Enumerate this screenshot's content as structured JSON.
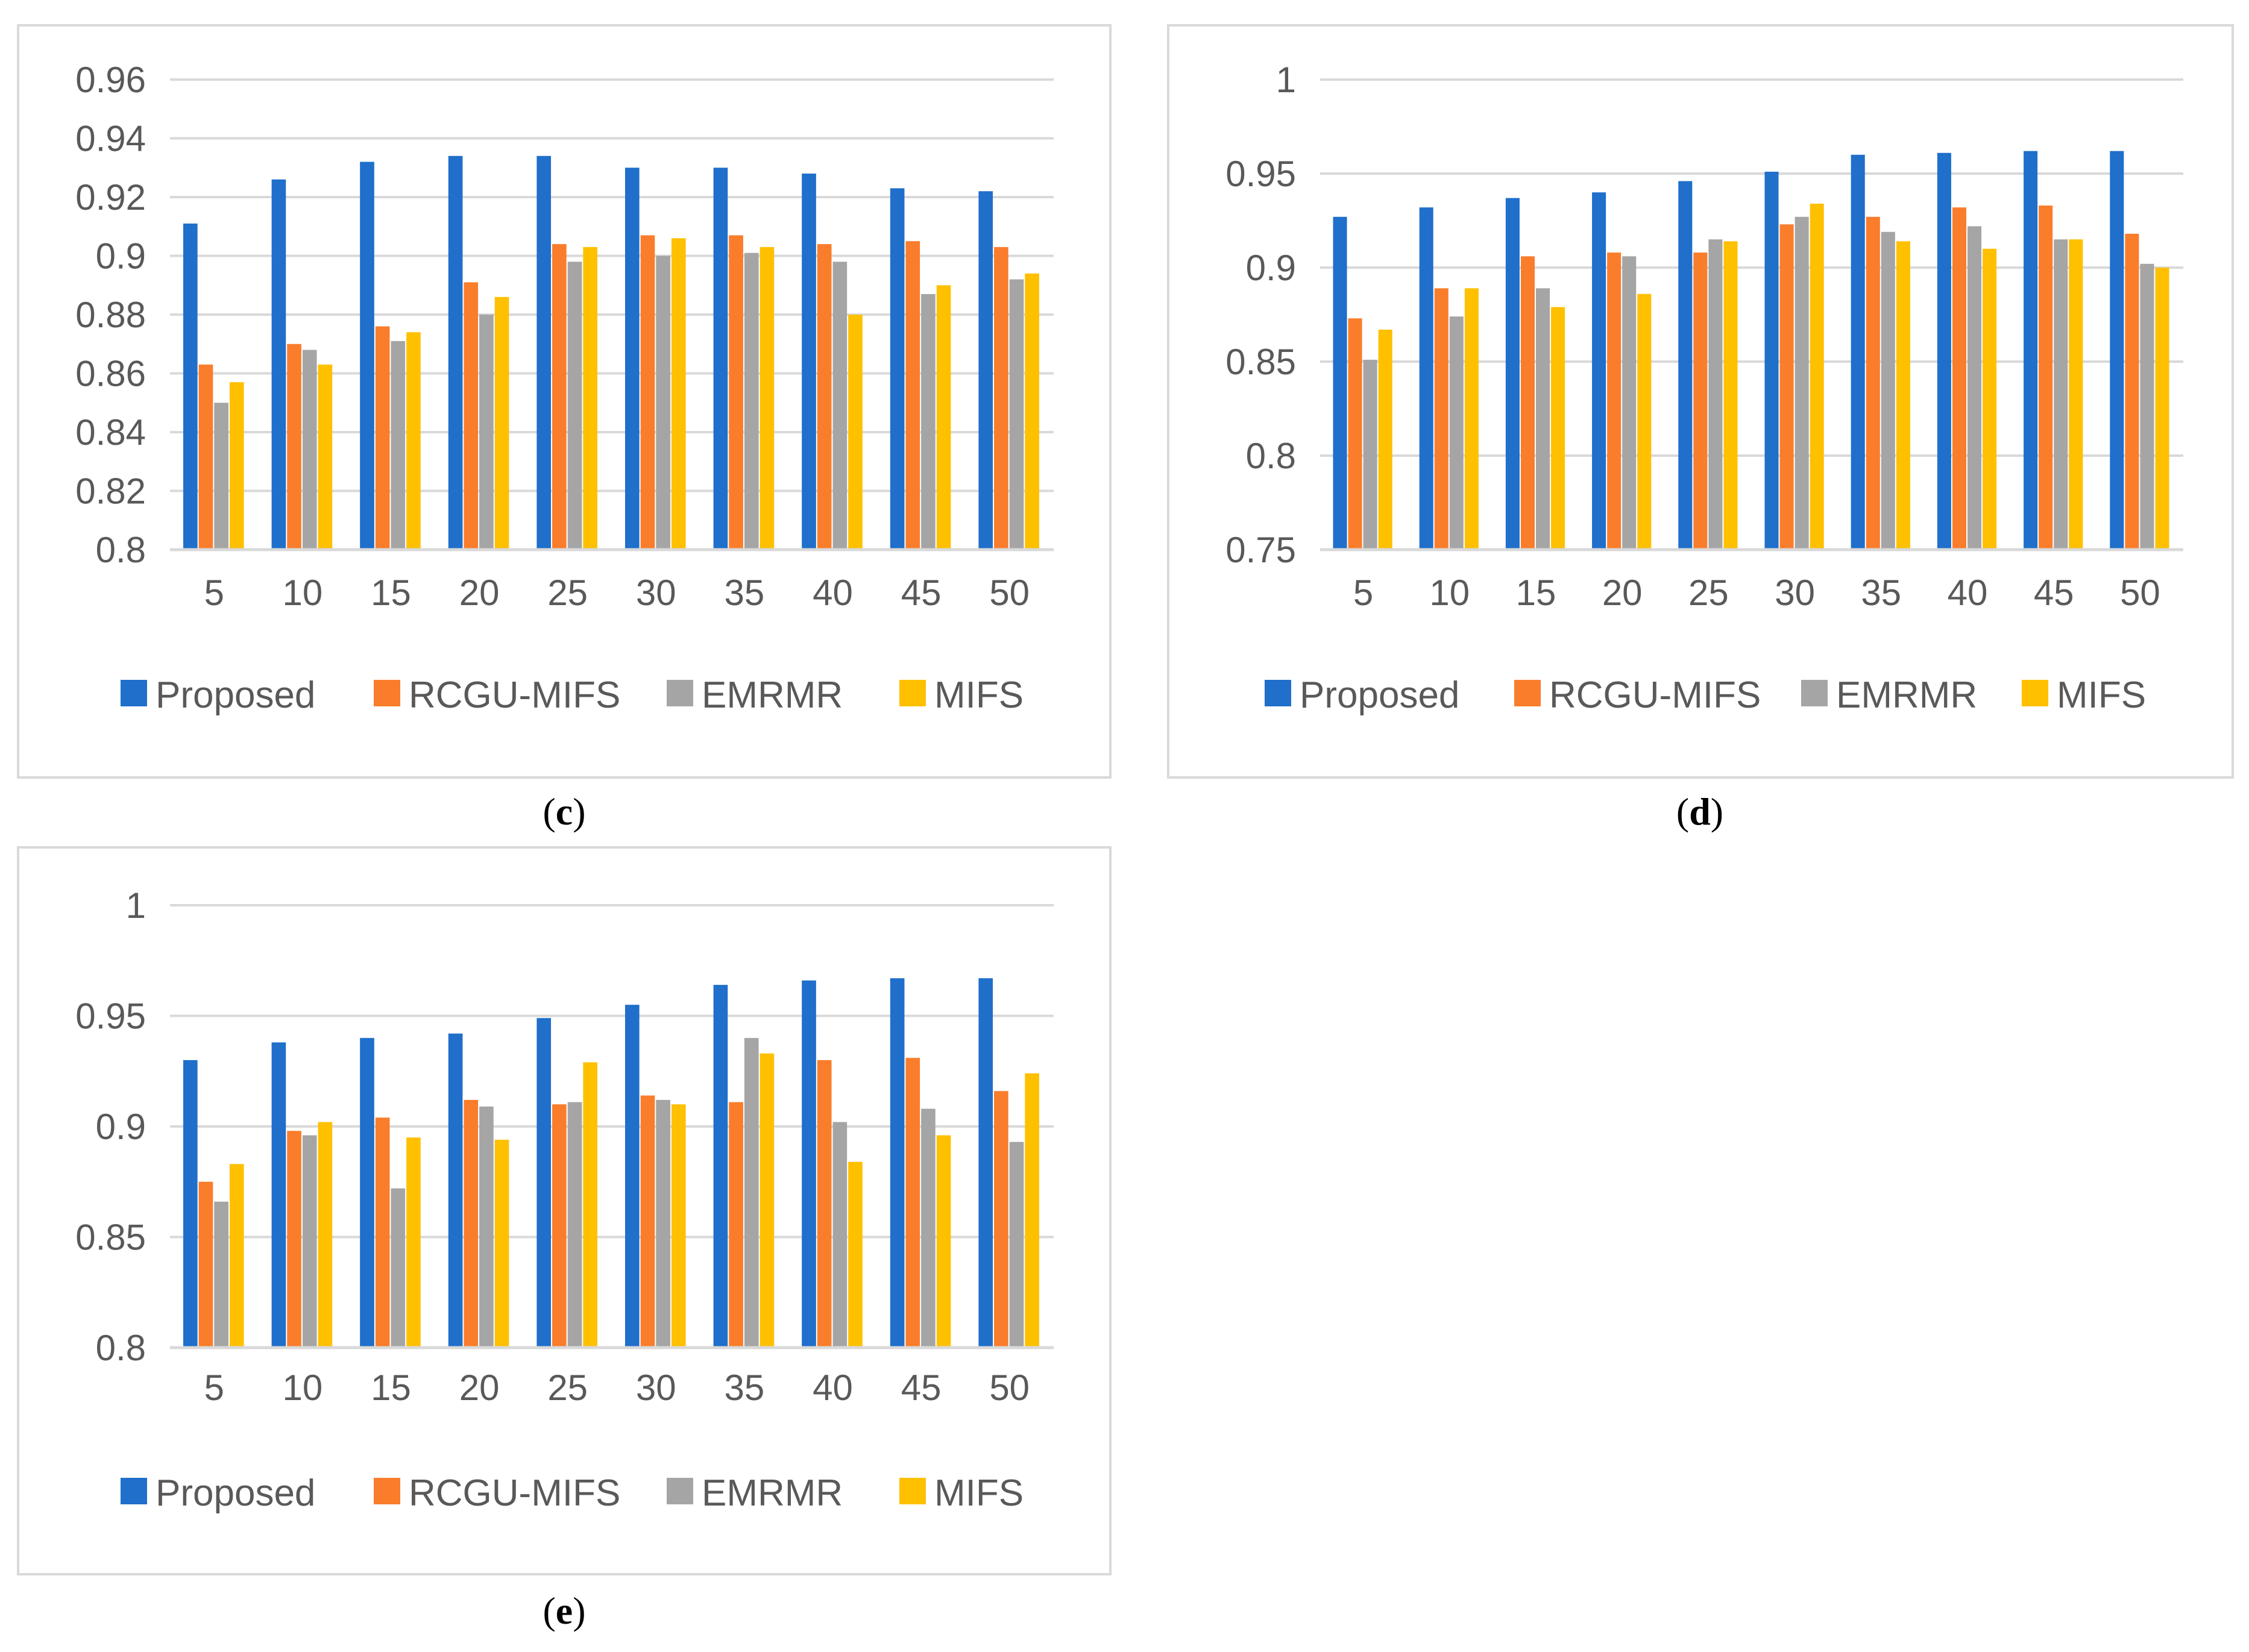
{
  "colors": {
    "Proposed": "#1f6fcb",
    "RCGU-MIFS": "#fa7d2c",
    "EMRMR": "#a5a5a5",
    "MIFS": "#ffc000",
    "grid": "#d9d9d9",
    "text": "#595959"
  },
  "chart_data": [
    {
      "id": "c",
      "caption_open": "(",
      "caption_letter": "c",
      "caption_close": ")",
      "type": "bar",
      "title": "",
      "xlabel": "",
      "ylabel": "",
      "categories": [
        "5",
        "10",
        "15",
        "20",
        "25",
        "30",
        "35",
        "40",
        "45",
        "50"
      ],
      "ylim": [
        0.8,
        0.96
      ],
      "yticks": [
        "0.8",
        "0.82",
        "0.84",
        "0.86",
        "0.88",
        "0.9",
        "0.92",
        "0.94",
        "0.96"
      ],
      "legend_position": "bottom",
      "series": [
        {
          "name": "Proposed",
          "values": [
            0.911,
            0.926,
            0.932,
            0.934,
            0.934,
            0.93,
            0.93,
            0.928,
            0.923,
            0.922
          ]
        },
        {
          "name": "RCGU-MIFS",
          "values": [
            0.863,
            0.87,
            0.876,
            0.891,
            0.904,
            0.907,
            0.907,
            0.904,
            0.905,
            0.903
          ]
        },
        {
          "name": "EMRMR",
          "values": [
            0.85,
            0.868,
            0.871,
            0.88,
            0.898,
            0.9,
            0.901,
            0.898,
            0.887,
            0.892
          ]
        },
        {
          "name": "MIFS",
          "values": [
            0.857,
            0.863,
            0.874,
            0.886,
            0.903,
            0.906,
            0.903,
            0.88,
            0.89,
            0.894
          ]
        }
      ]
    },
    {
      "id": "d",
      "caption_open": "(",
      "caption_letter": "d",
      "caption_close": ")",
      "type": "bar",
      "title": "",
      "xlabel": "",
      "ylabel": "",
      "categories": [
        "5",
        "10",
        "15",
        "20",
        "25",
        "30",
        "35",
        "40",
        "45",
        "50"
      ],
      "ylim": [
        0.75,
        1
      ],
      "yticks": [
        "0.75",
        "0.8",
        "0.85",
        "0.9",
        "0.95",
        "1"
      ],
      "legend_position": "bottom",
      "series": [
        {
          "name": "Proposed",
          "values": [
            0.927,
            0.932,
            0.937,
            0.94,
            0.946,
            0.951,
            0.96,
            0.961,
            0.962,
            0.962
          ]
        },
        {
          "name": "RCGU-MIFS",
          "values": [
            0.873,
            0.889,
            0.906,
            0.908,
            0.908,
            0.923,
            0.927,
            0.932,
            0.933,
            0.918
          ]
        },
        {
          "name": "EMRMR",
          "values": [
            0.851,
            0.874,
            0.889,
            0.906,
            0.915,
            0.927,
            0.919,
            0.922,
            0.915,
            0.902
          ]
        },
        {
          "name": "MIFS",
          "values": [
            0.867,
            0.889,
            0.879,
            0.886,
            0.914,
            0.934,
            0.914,
            0.91,
            0.915,
            0.9
          ]
        }
      ]
    },
    {
      "id": "e",
      "caption_open": "(",
      "caption_letter": "e",
      "caption_close": ")",
      "type": "bar",
      "title": "",
      "xlabel": "",
      "ylabel": "",
      "categories": [
        "5",
        "10",
        "15",
        "20",
        "25",
        "30",
        "35",
        "40",
        "45",
        "50"
      ],
      "ylim": [
        0.8,
        1
      ],
      "yticks": [
        "0.8",
        "0.85",
        "0.9",
        "0.95",
        "1"
      ],
      "legend_position": "bottom",
      "series": [
        {
          "name": "Proposed",
          "values": [
            0.93,
            0.938,
            0.94,
            0.942,
            0.949,
            0.955,
            0.964,
            0.966,
            0.967,
            0.967
          ]
        },
        {
          "name": "RCGU-MIFS",
          "values": [
            0.875,
            0.898,
            0.904,
            0.912,
            0.91,
            0.914,
            0.911,
            0.93,
            0.931,
            0.916
          ]
        },
        {
          "name": "EMRMR",
          "values": [
            0.866,
            0.896,
            0.872,
            0.909,
            0.911,
            0.912,
            0.94,
            0.902,
            0.908,
            0.893
          ]
        },
        {
          "name": "MIFS",
          "values": [
            0.883,
            0.902,
            0.895,
            0.894,
            0.929,
            0.91,
            0.933,
            0.884,
            0.896,
            0.924
          ]
        }
      ]
    }
  ]
}
